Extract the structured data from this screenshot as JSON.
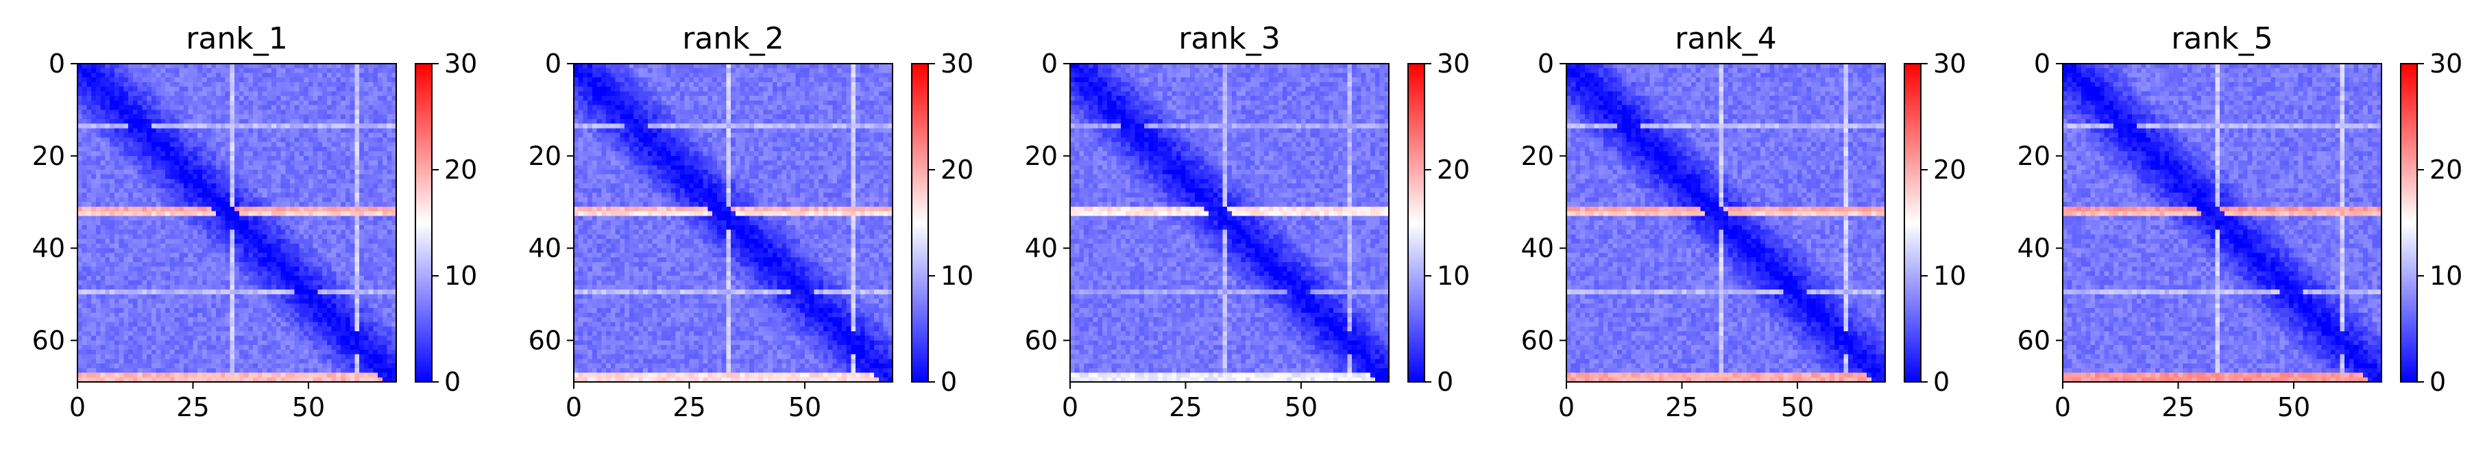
{
  "chart_data": [
    {
      "type": "heatmap",
      "title": "rank_1",
      "xlabel": "",
      "ylabel": "",
      "xlim": [
        0,
        69
      ],
      "ylim": [
        69,
        0
      ],
      "xticks": [
        0,
        25,
        50
      ],
      "yticks": [
        0,
        20,
        40,
        60
      ],
      "colorbar": {
        "min": 0,
        "max": 30,
        "ticks": [
          0,
          10,
          20,
          30
        ],
        "colormap": "bwr"
      },
      "matrix_size": 69,
      "diagonal_value": 0,
      "background_value": 7,
      "row_bands": [
        {
          "row": 31,
          "value": 20
        },
        {
          "row": 32,
          "value": 18
        },
        {
          "row": 13,
          "value": 11
        },
        {
          "row": 49,
          "value": 11
        },
        {
          "row": 67,
          "value": 19
        },
        {
          "row": 68,
          "value": 19
        }
      ],
      "col_bands": [
        {
          "col": 33,
          "value": 12
        },
        {
          "col": 60,
          "value": 12
        }
      ]
    },
    {
      "type": "heatmap",
      "title": "rank_2",
      "xlabel": "",
      "ylabel": "",
      "xlim": [
        0,
        69
      ],
      "ylim": [
        69,
        0
      ],
      "xticks": [
        0,
        25,
        50
      ],
      "yticks": [
        0,
        20,
        40,
        60
      ],
      "colorbar": {
        "min": 0,
        "max": 30,
        "ticks": [
          0,
          10,
          20,
          30
        ],
        "colormap": "bwr"
      },
      "matrix_size": 69,
      "diagonal_value": 0,
      "background_value": 7,
      "row_bands": [
        {
          "row": 31,
          "value": 19
        },
        {
          "row": 32,
          "value": 17
        },
        {
          "row": 13,
          "value": 11
        },
        {
          "row": 49,
          "value": 11
        },
        {
          "row": 67,
          "value": 17
        },
        {
          "row": 68,
          "value": 17
        }
      ],
      "col_bands": [
        {
          "col": 33,
          "value": 12
        },
        {
          "col": 60,
          "value": 12
        }
      ]
    },
    {
      "type": "heatmap",
      "title": "rank_3",
      "xlabel": "",
      "ylabel": "",
      "xlim": [
        0,
        69
      ],
      "ylim": [
        69,
        0
      ],
      "xticks": [
        0,
        25,
        50
      ],
      "yticks": [
        0,
        20,
        40,
        60
      ],
      "colorbar": {
        "min": 0,
        "max": 30,
        "ticks": [
          0,
          10,
          20,
          30
        ],
        "colormap": "bwr"
      },
      "matrix_size": 69,
      "diagonal_value": 0,
      "background_value": 7,
      "row_bands": [
        {
          "row": 31,
          "value": 17
        },
        {
          "row": 32,
          "value": 16
        },
        {
          "row": 13,
          "value": 10
        },
        {
          "row": 49,
          "value": 10
        },
        {
          "row": 67,
          "value": 14
        },
        {
          "row": 68,
          "value": 14
        }
      ],
      "col_bands": [
        {
          "col": 33,
          "value": 11
        },
        {
          "col": 60,
          "value": 11
        }
      ]
    },
    {
      "type": "heatmap",
      "title": "rank_4",
      "xlabel": "",
      "ylabel": "",
      "xlim": [
        0,
        69
      ],
      "ylim": [
        69,
        0
      ],
      "xticks": [
        0,
        25,
        50
      ],
      "yticks": [
        0,
        20,
        40,
        60
      ],
      "colorbar": {
        "min": 0,
        "max": 30,
        "ticks": [
          0,
          10,
          20,
          30
        ],
        "colormap": "bwr"
      },
      "matrix_size": 69,
      "diagonal_value": 0,
      "background_value": 7,
      "row_bands": [
        {
          "row": 31,
          "value": 20
        },
        {
          "row": 32,
          "value": 18
        },
        {
          "row": 13,
          "value": 11
        },
        {
          "row": 49,
          "value": 11
        },
        {
          "row": 67,
          "value": 20
        },
        {
          "row": 68,
          "value": 20
        }
      ],
      "col_bands": [
        {
          "col": 33,
          "value": 12
        },
        {
          "col": 60,
          "value": 12
        }
      ]
    },
    {
      "type": "heatmap",
      "title": "rank_5",
      "xlabel": "",
      "ylabel": "",
      "xlim": [
        0,
        69
      ],
      "ylim": [
        69,
        0
      ],
      "xticks": [
        0,
        25,
        50
      ],
      "yticks": [
        0,
        20,
        40,
        60
      ],
      "colorbar": {
        "min": 0,
        "max": 30,
        "ticks": [
          0,
          10,
          20,
          30
        ],
        "colormap": "bwr"
      },
      "matrix_size": 69,
      "diagonal_value": 0,
      "background_value": 7,
      "row_bands": [
        {
          "row": 31,
          "value": 21
        },
        {
          "row": 32,
          "value": 19
        },
        {
          "row": 13,
          "value": 11
        },
        {
          "row": 49,
          "value": 11
        },
        {
          "row": 67,
          "value": 21
        },
        {
          "row": 68,
          "value": 21
        }
      ],
      "col_bands": [
        {
          "col": 33,
          "value": 12
        },
        {
          "col": 60,
          "value": 12
        }
      ]
    }
  ]
}
